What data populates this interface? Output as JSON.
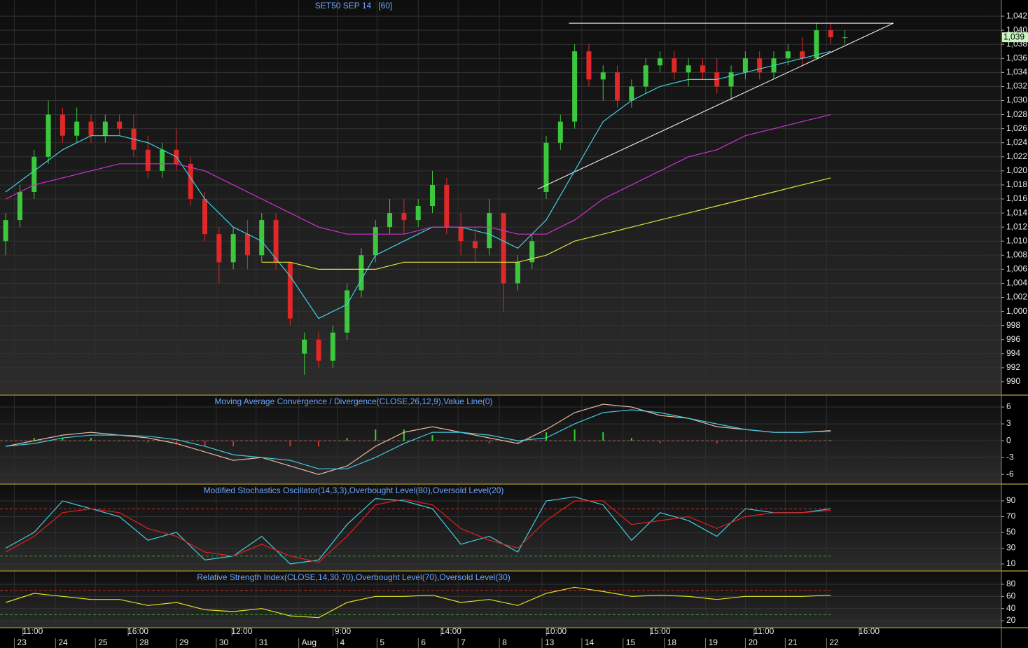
{
  "chart_data": [
    {
      "type": "candlestick",
      "title": "SET50 SEP 14   [60]",
      "grid": true,
      "xlim": [
        -0.4,
        70
      ],
      "ylim": [
        988.2,
        1044.3
      ],
      "yticks": [
        990,
        992,
        994,
        996,
        998,
        {
          "value": 1000,
          "label": "1,000"
        },
        {
          "value": 1002,
          "label": "1,002"
        },
        {
          "value": 1004,
          "label": "1,004"
        },
        {
          "value": 1006,
          "label": "1,006"
        },
        {
          "value": 1008,
          "label": "1,008"
        },
        {
          "value": 1010,
          "label": "1,010"
        },
        {
          "value": 1012,
          "label": "1,012"
        },
        {
          "value": 1014,
          "label": "1,014"
        },
        {
          "value": 1016,
          "label": "1,016"
        },
        {
          "value": 1018,
          "label": "1,018"
        },
        {
          "value": 1020,
          "label": "1,020"
        },
        {
          "value": 1022,
          "label": "1,022"
        },
        {
          "value": 1024,
          "label": "1,024"
        },
        {
          "value": 1026,
          "label": "1,026"
        },
        {
          "value": 1028,
          "label": "1,028"
        },
        {
          "value": 1030,
          "label": "1,030"
        },
        {
          "value": 1032,
          "label": "1,032"
        },
        {
          "value": 1034,
          "label": "1,034"
        },
        {
          "value": 1036,
          "label": "1,036"
        },
        {
          "value": 1038,
          "label": "1,038"
        },
        {
          "value": 1040,
          "label": "1,040"
        },
        {
          "value": 1042,
          "label": "1,042"
        }
      ],
      "xticks": [
        {
          "value": 1.9,
          "label": "11:00"
        },
        {
          "value": 9.3,
          "label": "16:00"
        },
        {
          "value": 16.6,
          "label": "12:00"
        },
        {
          "value": 23.7,
          "label": "9:00"
        },
        {
          "value": 31.3,
          "label": "14:00"
        },
        {
          "value": 38.7,
          "label": "10:00"
        },
        {
          "value": 46,
          "label": "15:00"
        },
        {
          "value": 53.3,
          "label": "11:00"
        },
        {
          "value": 60.7,
          "label": "16:00"
        }
      ],
      "date_ticks": [
        {
          "value": 0.9,
          "label": "23"
        },
        {
          "value": 3.8,
          "label": "24"
        },
        {
          "value": 6.6,
          "label": "25"
        },
        {
          "value": 9.5,
          "label": "28"
        },
        {
          "value": 12.3,
          "label": "29"
        },
        {
          "value": 15.1,
          "label": "30"
        },
        {
          "value": 17.9,
          "label": "31"
        },
        {
          "value": 20.9,
          "label": "Aug"
        },
        {
          "value": 23.6,
          "label": "4"
        },
        {
          "value": 26.4,
          "label": "5"
        },
        {
          "value": 29.3,
          "label": "6"
        },
        {
          "value": 32.1,
          "label": "7"
        },
        {
          "value": 35,
          "label": "8"
        },
        {
          "value": 38,
          "label": "13"
        },
        {
          "value": 40.8,
          "label": "14"
        },
        {
          "value": 43.7,
          "label": "15"
        },
        {
          "value": 46.6,
          "label": "18"
        },
        {
          "value": 49.5,
          "label": "19"
        },
        {
          "value": 52.3,
          "label": "20"
        },
        {
          "value": 55.1,
          "label": "21"
        },
        {
          "value": 58,
          "label": "22"
        }
      ],
      "up_color": "#3cc83c",
      "down_color": "#e02828",
      "candles": {
        "x": [
          0,
          1,
          2,
          3,
          4,
          5,
          6,
          7,
          8,
          9,
          10,
          11,
          12,
          13,
          14,
          15,
          16,
          17,
          18,
          19,
          20,
          21,
          22,
          23,
          24,
          25,
          26,
          27,
          28,
          29,
          30,
          31,
          32,
          33,
          34,
          35,
          36,
          37,
          38,
          39,
          40,
          41,
          42,
          43,
          44,
          45,
          46,
          47,
          48,
          49,
          50,
          51,
          52,
          53,
          54,
          55,
          56,
          57,
          58,
          59
        ],
        "open": [
          1010,
          1013,
          1017,
          1022,
          1028,
          1025,
          1027,
          1025,
          1027,
          1026,
          1023,
          1020,
          1023,
          1021,
          1016,
          1011,
          1007,
          1011,
          1008,
          1013,
          1007,
          994,
          996,
          993,
          997,
          1003,
          1008,
          1012,
          1014,
          1013,
          1015,
          1018,
          1012,
          1010,
          1009,
          1014,
          1004,
          1007,
          1017,
          1024,
          1027,
          1037,
          1033,
          1034,
          1030,
          1032,
          1035,
          1036,
          1034,
          1035,
          1034,
          1032,
          1034,
          1036,
          1034,
          1036,
          1037,
          1036,
          1040,
          1039
        ],
        "high": [
          1014,
          1018,
          1023,
          1030,
          1029,
          1029,
          1028,
          1028,
          1028,
          1028,
          1025,
          1024,
          1026,
          1022,
          1017,
          1012,
          1012,
          1013,
          1014,
          1014,
          1007,
          997,
          997,
          998,
          1004,
          1009,
          1013,
          1016,
          1016,
          1016,
          1020,
          1019,
          1014,
          1012,
          1016,
          1014,
          1008,
          1011,
          1025,
          1028,
          1038,
          1038,
          1035,
          1035,
          1033,
          1036,
          1037,
          1037,
          1036,
          1036,
          1036,
          1035,
          1037,
          1037,
          1037,
          1038,
          1039,
          1041,
          1041,
          1040
        ],
        "low": [
          1008,
          1012,
          1016,
          1021,
          1024,
          1024,
          1024,
          1024,
          1025,
          1022,
          1019,
          1019,
          1020,
          1015,
          1010,
          1004,
          1006,
          1006,
          1007,
          1006,
          998,
          991,
          992,
          992,
          996,
          1002,
          1007,
          1011,
          1011,
          1012,
          1014,
          1011,
          1008,
          1007,
          1008,
          1000,
          1003,
          1006,
          1016,
          1023,
          1026,
          1032,
          1030,
          1029,
          1029,
          1031,
          1034,
          1033,
          1032,
          1033,
          1031,
          1030,
          1033,
          1033,
          1033,
          1035,
          1035,
          1036,
          1038,
          1038
        ],
        "close": [
          1013,
          1017,
          1022,
          1028,
          1025,
          1027,
          1025,
          1027,
          1026,
          1023,
          1020,
          1023,
          1021,
          1016,
          1011,
          1007,
          1011,
          1008,
          1013,
          1007,
          999,
          996,
          993,
          997,
          1003,
          1008,
          1012,
          1014,
          1013,
          1015,
          1018,
          1012,
          1010,
          1009,
          1014,
          1004,
          1007,
          1010,
          1024,
          1027,
          1037,
          1033,
          1034,
          1030,
          1032,
          1035,
          1036,
          1034,
          1035,
          1034,
          1032,
          1034,
          1036,
          1034,
          1036,
          1037,
          1036,
          1040,
          1039,
          1039
        ]
      },
      "x": [
        0,
        2,
        4,
        6,
        8,
        10,
        12,
        14,
        16,
        18,
        20,
        22,
        24,
        26,
        28,
        30,
        32,
        34,
        36,
        38,
        40,
        42,
        44,
        46,
        48,
        50,
        52,
        54,
        56,
        58
      ],
      "series": [
        {
          "color": "#40d0e0",
          "values": [
            1017,
            1020,
            1023,
            1025,
            1025,
            1024,
            1022,
            1016,
            1012,
            1010,
            1005,
            999,
            1001,
            1008,
            1010,
            1012,
            1012,
            1011,
            1009,
            1013,
            1020,
            1027,
            1030,
            1032,
            1033,
            1033,
            1034,
            1035,
            1036,
            1037
          ]
        },
        {
          "color": "#d030d0",
          "values": [
            1016,
            1018,
            1019,
            1020,
            1021,
            1021,
            1021,
            1020,
            1018,
            1016,
            1014,
            1012,
            1011,
            1011,
            1011,
            1012,
            1012,
            1012,
            1011,
            1011,
            1013,
            1016,
            1018,
            1020,
            1022,
            1023,
            1025,
            1026,
            1027,
            1028
          ]
        },
        {
          "color": "#e0e040",
          "values": [
            null,
            null,
            null,
            null,
            null,
            null,
            null,
            null,
            null,
            1007,
            1007,
            1006,
            1006,
            1006,
            1007,
            1007,
            1007,
            1007,
            1007,
            1008,
            1010,
            1011,
            1012,
            1013,
            1014,
            1015,
            1016,
            1017,
            1018,
            1019
          ]
        }
      ],
      "trendlines": [
        {
          "color": "#ffffff",
          "x": [
            39.6,
            62.4
          ],
          "y": [
            1041,
            1041
          ]
        },
        {
          "color": "#ffffff",
          "x": [
            37.4,
            62.4
          ],
          "y": [
            1017.4,
            1041
          ]
        }
      ],
      "last_price": {
        "value": 1039,
        "label": "1,039",
        "color": "#c8f5c0"
      }
    },
    {
      "type": "line",
      "title": "Moving Average Convergence / Divergence(CLOSE,26,12,9),Value Line(0)",
      "grid": true,
      "ylim": [
        -7.6,
        8
      ],
      "yticks": [
        -6,
        -3,
        0,
        3,
        6
      ],
      "levels": [
        {
          "value": 0,
          "color": "#a06050"
        }
      ],
      "x": [
        0,
        2,
        4,
        6,
        8,
        10,
        12,
        14,
        16,
        18,
        20,
        22,
        24,
        26,
        28,
        30,
        32,
        34,
        36,
        38,
        40,
        42,
        44,
        46,
        48,
        50,
        52,
        54,
        56,
        58
      ],
      "histogram": {
        "colors": [
          "#30d030",
          "#d03030"
        ],
        "values": [
          0,
          0.5,
          0.5,
          0.5,
          0,
          -0.3,
          -0.7,
          -1,
          -1,
          0,
          -1,
          -1,
          0.5,
          2,
          2,
          1,
          0,
          -0.5,
          -0.5,
          1.5,
          2,
          1.5,
          0.5,
          -0.5,
          0,
          -0.5,
          0,
          0,
          0,
          0.1
        ]
      },
      "series": [
        {
          "color": "#e8b8a0",
          "values": [
            -1,
            0,
            1,
            1.5,
            1,
            0.5,
            -0.5,
            -2,
            -3.5,
            -3,
            -4.5,
            -6,
            -4.5,
            -1,
            1.5,
            2.5,
            1.5,
            0.5,
            -0.5,
            2,
            5,
            6.5,
            6,
            4.5,
            4,
            2.5,
            2,
            1.5,
            1.5,
            1.8
          ]
        },
        {
          "color": "#40c8e0",
          "values": [
            -1,
            -0.5,
            0.5,
            1,
            1,
            0.8,
            0.2,
            -1,
            -2.5,
            -3,
            -3.5,
            -5,
            -5,
            -3,
            -0.5,
            1.5,
            1.5,
            1,
            0,
            0.5,
            3,
            5,
            5.5,
            5,
            4,
            3,
            2,
            1.5,
            1.5,
            1.7
          ]
        }
      ]
    },
    {
      "type": "line",
      "title": "Modified Stochastics Oscillator(14,3,3),Overbought Level(80),Oversold Level(20)",
      "grid": true,
      "ylim": [
        2,
        110.4
      ],
      "yticks": [
        10,
        30,
        50,
        70,
        90
      ],
      "levels": [
        {
          "value": 80,
          "color": "#c03030"
        },
        {
          "value": 20,
          "color": "#30a030"
        }
      ],
      "x": [
        0,
        2,
        4,
        6,
        8,
        10,
        12,
        14,
        16,
        18,
        20,
        22,
        24,
        26,
        28,
        30,
        32,
        34,
        36,
        38,
        40,
        42,
        44,
        46,
        48,
        50,
        52,
        54,
        56,
        58
      ],
      "series": [
        {
          "color": "#40d0e0",
          "values": [
            30,
            50,
            90,
            80,
            70,
            40,
            50,
            15,
            20,
            45,
            10,
            15,
            60,
            93,
            90,
            80,
            35,
            45,
            25,
            90,
            95,
            85,
            40,
            75,
            65,
            45,
            80,
            75,
            75,
            80
          ]
        },
        {
          "color": "#e02020",
          "values": [
            25,
            45,
            75,
            80,
            75,
            55,
            45,
            25,
            20,
            35,
            20,
            12,
            45,
            85,
            92,
            85,
            55,
            40,
            30,
            65,
            90,
            90,
            60,
            65,
            70,
            55,
            70,
            75,
            75,
            78
          ]
        }
      ]
    },
    {
      "type": "line",
      "title": "Relative Strength Index(CLOSE,14,30,70),Overbought Level(70),Oversold Level(30)",
      "grid": true,
      "ylim": [
        9.6,
        100.8
      ],
      "yticks": [
        20,
        40,
        60,
        80
      ],
      "levels": [
        {
          "value": 70,
          "color": "#c03030"
        },
        {
          "value": 30,
          "color": "#30a030"
        }
      ],
      "x": [
        0,
        2,
        4,
        6,
        8,
        10,
        12,
        14,
        16,
        18,
        20,
        22,
        24,
        26,
        28,
        30,
        32,
        34,
        36,
        38,
        40,
        42,
        44,
        46,
        48,
        50,
        52,
        54,
        56,
        58
      ],
      "series": [
        {
          "color": "#e0e020",
          "values": [
            50,
            65,
            60,
            55,
            55,
            45,
            50,
            38,
            35,
            40,
            28,
            25,
            50,
            60,
            60,
            62,
            50,
            55,
            45,
            65,
            75,
            68,
            60,
            62,
            60,
            55,
            60,
            60,
            60,
            62
          ]
        }
      ]
    }
  ]
}
